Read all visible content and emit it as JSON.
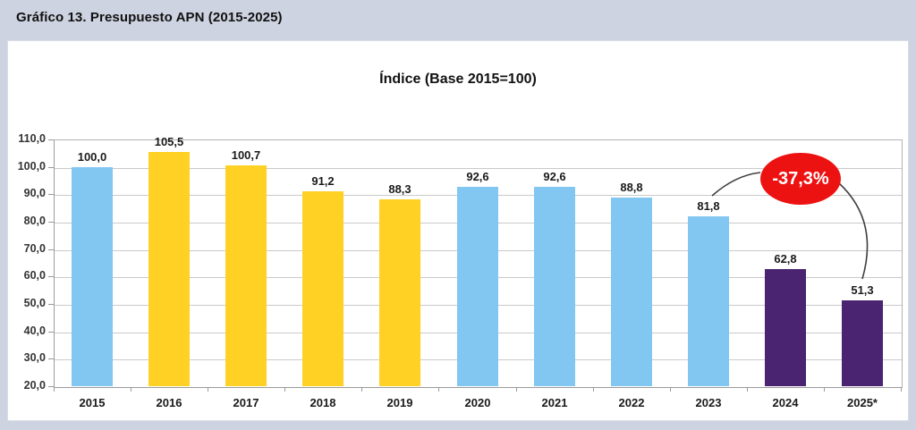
{
  "header": {
    "title": "Gráfico 13. Presupuesto APN (2015-2025)"
  },
  "chart": {
    "title": "Índice (Base 2015=100)"
  },
  "annotation": {
    "label": "-37,3%",
    "fill_color": "#ed1212",
    "text_color": "#ffffff",
    "connects": [
      "2023",
      "2025*"
    ]
  },
  "chart_data": {
    "type": "bar",
    "title": "Índice (Base 2015=100)",
    "categories": [
      "2015",
      "2016",
      "2017",
      "2018",
      "2019",
      "2020",
      "2021",
      "2022",
      "2023",
      "2024",
      "2025*"
    ],
    "values": [
      100.0,
      105.5,
      100.7,
      91.2,
      88.3,
      92.6,
      92.6,
      88.8,
      81.8,
      62.8,
      51.3
    ],
    "value_labels": [
      "100,0",
      "105,5",
      "100,7",
      "91,2",
      "88,3",
      "92,6",
      "92,6",
      "88,8",
      "81,8",
      "62,8",
      "51,3"
    ],
    "bar_color_keys": [
      "blue",
      "yellow",
      "yellow",
      "yellow",
      "yellow",
      "blue",
      "blue",
      "blue",
      "blue",
      "purple",
      "purple"
    ],
    "palette": {
      "blue": "#82c6f2",
      "yellow": "#ffd125",
      "purple": "#4a2371"
    },
    "xlabel": "",
    "ylabel": "",
    "ylim": [
      20,
      110
    ],
    "ytick_step": 10,
    "ytick_labels": [
      "20,0",
      "30,0",
      "40,0",
      "50,0",
      "60,0",
      "70,0",
      "80,0",
      "90,0",
      "100,0",
      "110,0"
    ],
    "grid": true,
    "legend": null,
    "annotation": {
      "text": "-37,3%",
      "targets": [
        "2023",
        "2025*"
      ]
    }
  }
}
